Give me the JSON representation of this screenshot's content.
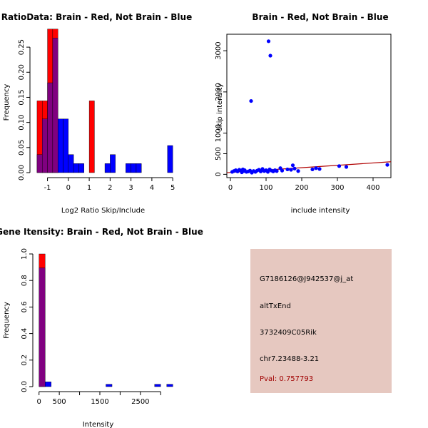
{
  "chart_data": [
    {
      "type": "histogram",
      "title": "RatioData: Brain - Red, Not Brain - Blue",
      "xlabel": "Log2 Ratio Skip/Include",
      "ylabel": "Frequency",
      "xlim": [
        -1.6,
        5.2
      ],
      "ylim": [
        0,
        0.28
      ],
      "xticks": [
        "-1",
        "0",
        "1",
        "2",
        "3",
        "4",
        "5"
      ],
      "xtick_values": [
        -1,
        0,
        1,
        2,
        3,
        4,
        5
      ],
      "yticks": [
        "0.00",
        "0.05",
        "0.10",
        "0.15",
        "0.20",
        "0.25"
      ],
      "ytick_values": [
        0,
        0.05,
        0.1,
        0.15,
        0.2,
        0.25
      ],
      "bin_width": 0.25,
      "red_series": {
        "name": "Brain",
        "bins": [
          {
            "x0": -1.5,
            "v": 0.143
          },
          {
            "x0": -1.25,
            "v": 0.143
          },
          {
            "x0": -1.0,
            "v": 0.286
          },
          {
            "x0": -0.75,
            "v": 0.286
          },
          {
            "x0": 1.0,
            "v": 0.143
          }
        ]
      },
      "blue_series": {
        "name": "Not Brain",
        "bins": [
          {
            "x0": -1.5,
            "v": 0.036
          },
          {
            "x0": -1.25,
            "v": 0.107
          },
          {
            "x0": -1.0,
            "v": 0.179
          },
          {
            "x0": -0.75,
            "v": 0.268
          },
          {
            "x0": -0.5,
            "v": 0.107
          },
          {
            "x0": -0.25,
            "v": 0.107
          },
          {
            "x0": 0.0,
            "v": 0.036
          },
          {
            "x0": 0.25,
            "v": 0.018
          },
          {
            "x0": 0.5,
            "v": 0.018
          },
          {
            "x0": 1.75,
            "v": 0.018
          },
          {
            "x0": 2.0,
            "v": 0.036
          },
          {
            "x0": 2.75,
            "v": 0.018
          },
          {
            "x0": 3.0,
            "v": 0.018
          },
          {
            "x0": 3.25,
            "v": 0.018
          },
          {
            "x0": 4.75,
            "v": 0.054
          }
        ]
      }
    },
    {
      "type": "scatter",
      "title": "Brain - Red, Not Brain - Blue",
      "xlabel": "include intensity",
      "ylabel": "skip intensity",
      "xlim": [
        -10,
        450
      ],
      "ylim": [
        -80,
        3400
      ],
      "xticks": [
        "0",
        "100",
        "200",
        "300",
        "400"
      ],
      "xtick_values": [
        0,
        100,
        200,
        300,
        400
      ],
      "yticks": [
        "0",
        "500",
        "1000",
        "2000",
        "3000"
      ],
      "ytick_values": [
        0,
        500,
        1000,
        2000,
        3000
      ],
      "fit_line": {
        "x": [
          -10,
          450
        ],
        "y": [
          40,
          305
        ]
      },
      "points": [
        [
          5,
          60
        ],
        [
          10,
          80
        ],
        [
          15,
          100
        ],
        [
          20,
          70
        ],
        [
          25,
          110
        ],
        [
          30,
          90
        ],
        [
          32,
          50
        ],
        [
          35,
          120
        ],
        [
          38,
          80
        ],
        [
          40,
          100
        ],
        [
          45,
          60
        ],
        [
          50,
          70
        ],
        [
          55,
          90
        ],
        [
          60,
          40
        ],
        [
          65,
          80
        ],
        [
          70,
          60
        ],
        [
          75,
          90
        ],
        [
          80,
          110
        ],
        [
          85,
          70
        ],
        [
          90,
          130
        ],
        [
          95,
          80
        ],
        [
          100,
          100
        ],
        [
          105,
          60
        ],
        [
          110,
          120
        ],
        [
          115,
          90
        ],
        [
          120,
          70
        ],
        [
          125,
          100
        ],
        [
          130,
          80
        ],
        [
          140,
          150
        ],
        [
          145,
          90
        ],
        [
          160,
          120
        ],
        [
          170,
          110
        ],
        [
          175,
          220
        ],
        [
          180,
          140
        ],
        [
          190,
          80
        ],
        [
          230,
          120
        ],
        [
          240,
          150
        ],
        [
          250,
          130
        ],
        [
          305,
          200
        ],
        [
          325,
          180
        ],
        [
          440,
          230
        ],
        [
          58,
          1780
        ],
        [
          107,
          3230
        ],
        [
          112,
          2880
        ]
      ]
    },
    {
      "type": "histogram",
      "title": "Gene Itensity: Brain - Red, Not Brain - Blue",
      "xlabel": "Intensity",
      "ylabel": "Frequency",
      "xlim": [
        -30,
        3400
      ],
      "ylim": [
        0,
        1.0
      ],
      "xticks": [
        "0",
        "500",
        "1500",
        "2500"
      ],
      "xtick_values": [
        0,
        500,
        1500,
        2500
      ],
      "xtick_minor_values": [
        1000,
        2000,
        3000
      ],
      "yticks": [
        "0.0",
        "0.2",
        "0.4",
        "0.6",
        "0.8",
        "1.0"
      ],
      "ytick_values": [
        0,
        0.2,
        0.4,
        0.6,
        0.8,
        1.0
      ],
      "bin_width": 150,
      "red_series": {
        "name": "Brain",
        "bins": [
          {
            "x0": 0,
            "v": 1.0
          }
        ]
      },
      "blue_series": {
        "name": "Not Brain",
        "bins": [
          {
            "x0": 0,
            "v": 0.895
          },
          {
            "x0": 150,
            "v": 0.036
          },
          {
            "x0": 1650,
            "v": 0.018
          },
          {
            "x0": 2850,
            "v": 0.018
          },
          {
            "x0": 3150,
            "v": 0.018
          }
        ]
      }
    }
  ],
  "info_panel": {
    "probe_id": "G7186126@J942537@j_at",
    "event_type": "altTxEnd",
    "gene": "3732409C05Rik",
    "location": "chr7.23488-3.21",
    "pval": "Pval: 0.757793"
  },
  "colors": {
    "red": "#ff0000",
    "blue": "#0000ff",
    "overlap": "#800080",
    "fit_line": "#b00000",
    "panel_bg": "#e6c8c0"
  }
}
